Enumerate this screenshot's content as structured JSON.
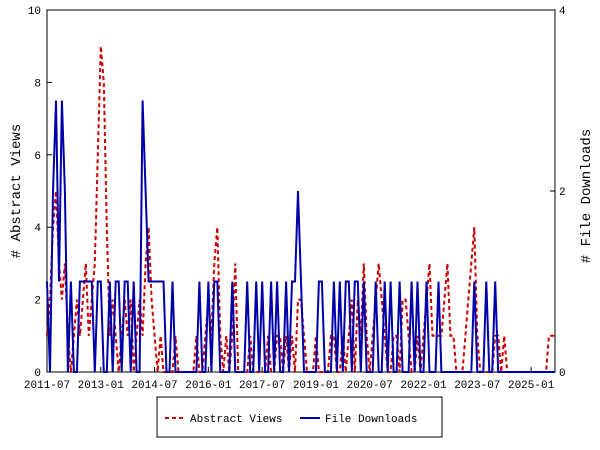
{
  "chart_data": {
    "type": "line",
    "x": [
      "2011-07",
      "2011-08",
      "2011-09",
      "2011-10",
      "2011-11",
      "2011-12",
      "2012-01",
      "2012-02",
      "2012-03",
      "2012-04",
      "2012-05",
      "2012-06",
      "2012-07",
      "2012-08",
      "2012-09",
      "2012-10",
      "2012-11",
      "2012-12",
      "2013-01",
      "2013-02",
      "2013-03",
      "2013-04",
      "2013-05",
      "2013-06",
      "2013-07",
      "2013-08",
      "2013-09",
      "2013-10",
      "2013-11",
      "2013-12",
      "2014-01",
      "2014-02",
      "2014-03",
      "2014-04",
      "2014-05",
      "2014-06",
      "2014-07",
      "2014-08",
      "2014-09",
      "2014-10",
      "2014-11",
      "2014-12",
      "2015-01",
      "2015-02",
      "2015-03",
      "2015-04",
      "2015-05",
      "2015-06",
      "2015-07",
      "2015-08",
      "2015-09",
      "2015-10",
      "2015-11",
      "2015-12",
      "2016-01",
      "2016-02",
      "2016-03",
      "2016-04",
      "2016-05",
      "2016-06",
      "2016-07",
      "2016-08",
      "2016-09",
      "2016-10",
      "2016-11",
      "2016-12",
      "2017-01",
      "2017-02",
      "2017-03",
      "2017-04",
      "2017-05",
      "2017-06",
      "2017-07",
      "2017-08",
      "2017-09",
      "2017-10",
      "2017-11",
      "2017-12",
      "2018-01",
      "2018-02",
      "2018-03",
      "2018-04",
      "2018-05",
      "2018-06",
      "2018-07",
      "2018-08",
      "2018-09",
      "2018-10",
      "2018-11",
      "2018-12",
      "2019-01",
      "2019-02",
      "2019-03",
      "2019-04",
      "2019-05",
      "2019-06",
      "2019-07",
      "2019-08",
      "2019-09",
      "2019-10",
      "2019-11",
      "2019-12",
      "2020-01",
      "2020-02",
      "2020-03",
      "2020-04",
      "2020-05",
      "2020-06",
      "2020-07",
      "2020-08",
      "2020-09",
      "2020-10",
      "2020-11",
      "2020-12",
      "2021-01",
      "2021-02",
      "2021-03",
      "2021-04",
      "2021-05",
      "2021-06",
      "2021-07",
      "2021-08",
      "2021-09",
      "2021-10",
      "2021-11",
      "2021-12",
      "2022-01",
      "2022-02",
      "2022-03",
      "2022-04",
      "2022-05",
      "2022-06",
      "2022-07",
      "2022-08",
      "2022-09",
      "2022-10",
      "2022-11",
      "2022-12",
      "2023-01",
      "2023-02",
      "2023-03",
      "2023-04",
      "2023-05",
      "2023-06",
      "2023-07",
      "2023-08",
      "2023-09",
      "2023-10",
      "2023-11",
      "2023-12",
      "2024-01",
      "2024-02",
      "2024-03",
      "2024-04",
      "2024-05",
      "2024-06",
      "2024-07",
      "2024-08",
      "2024-09",
      "2024-10",
      "2024-11",
      "2024-12",
      "2025-01",
      "2025-02",
      "2025-03",
      "2025-04",
      "2025-05",
      "2025-06",
      "2025-07",
      "2025-08",
      "2025-09"
    ],
    "series": [
      {
        "name": "Abstract Views",
        "color": "#cc0000",
        "dash": true,
        "values": [
          1,
          2,
          4,
          5,
          3,
          2,
          3,
          1,
          0,
          1,
          2,
          1,
          2,
          3,
          1,
          2,
          3,
          6,
          9,
          8,
          4,
          1,
          2,
          1,
          0,
          1,
          2,
          1,
          2,
          0,
          1,
          2,
          1,
          3,
          4,
          2,
          1,
          0,
          1,
          0,
          0,
          0,
          0,
          1,
          0,
          0,
          0,
          0,
          0,
          0,
          1,
          0,
          0,
          1,
          2,
          1,
          3,
          4,
          1,
          0,
          1,
          0,
          1,
          3,
          0,
          0,
          0,
          0,
          1,
          0,
          0,
          0,
          0,
          0,
          1,
          0,
          0,
          1,
          1,
          0,
          1,
          0,
          1,
          0,
          2,
          2,
          1,
          0,
          0,
          0,
          1,
          0,
          0,
          0,
          0,
          1,
          1,
          0,
          0,
          1,
          0,
          1,
          2,
          0,
          2,
          1,
          3,
          1,
          0,
          1,
          2,
          3,
          2,
          1,
          0,
          0,
          1,
          1,
          0,
          2,
          2,
          1,
          0,
          0,
          1,
          0,
          1,
          2,
          3,
          1,
          1,
          1,
          1,
          2,
          3,
          1,
          1,
          0,
          0,
          0,
          1,
          2,
          3,
          4,
          1,
          0,
          0,
          0,
          0,
          0,
          1,
          1,
          0,
          1,
          0,
          0,
          0,
          0,
          0,
          0,
          0,
          0,
          0,
          0,
          0,
          0,
          0,
          0,
          1,
          1,
          1
        ]
      },
      {
        "name": "File Downloads",
        "color": "#0000aa",
        "axis": "y2",
        "values": [
          1,
          0,
          2,
          3,
          1,
          3,
          2,
          0,
          1,
          0,
          0,
          1,
          1,
          1,
          1,
          1,
          0,
          1,
          1,
          0,
          0,
          1,
          0,
          1,
          1,
          0,
          1,
          1,
          0,
          1,
          0,
          0,
          3,
          2,
          1,
          1,
          1,
          1,
          1,
          1,
          0,
          0,
          1,
          0,
          0,
          0,
          0,
          0,
          0,
          0,
          0,
          1,
          0,
          0,
          1,
          0,
          1,
          1,
          0,
          0,
          0,
          0,
          1,
          0,
          0,
          0,
          0,
          1,
          0,
          0,
          1,
          0,
          1,
          0,
          0,
          1,
          0,
          1,
          0,
          0,
          1,
          0,
          1,
          1,
          2,
          1,
          0,
          0,
          0,
          0,
          0,
          1,
          1,
          0,
          0,
          0,
          1,
          0,
          1,
          0,
          1,
          1,
          0,
          1,
          1,
          0,
          1,
          0,
          0,
          0,
          1,
          0,
          0,
          1,
          0,
          1,
          0,
          0,
          1,
          0,
          0,
          0,
          1,
          0,
          1,
          0,
          0,
          1,
          0,
          0,
          0,
          1,
          0,
          0,
          0,
          0,
          0,
          0,
          0,
          0,
          0,
          0,
          0,
          1,
          0,
          0,
          0,
          1,
          0,
          0,
          1,
          0,
          0,
          0,
          0,
          0,
          0,
          0,
          0,
          0,
          0,
          0,
          0,
          0,
          0,
          0,
          0,
          0,
          0,
          0,
          0
        ]
      }
    ],
    "xticks": [
      "2011-07",
      "2013-01",
      "2014-07",
      "2016-01",
      "2017-07",
      "2019-01",
      "2020-07",
      "2022-01",
      "2023-07",
      "2025-01"
    ],
    "ylim": [
      0,
      10
    ],
    "yticks": [
      0,
      2,
      4,
      6,
      8,
      10
    ],
    "y2lim": [
      0,
      4
    ],
    "y2ticks": [
      0,
      2,
      4
    ],
    "ylabel": "# Abstract Views",
    "y2label": "# File Downloads",
    "legend": "bottom"
  }
}
